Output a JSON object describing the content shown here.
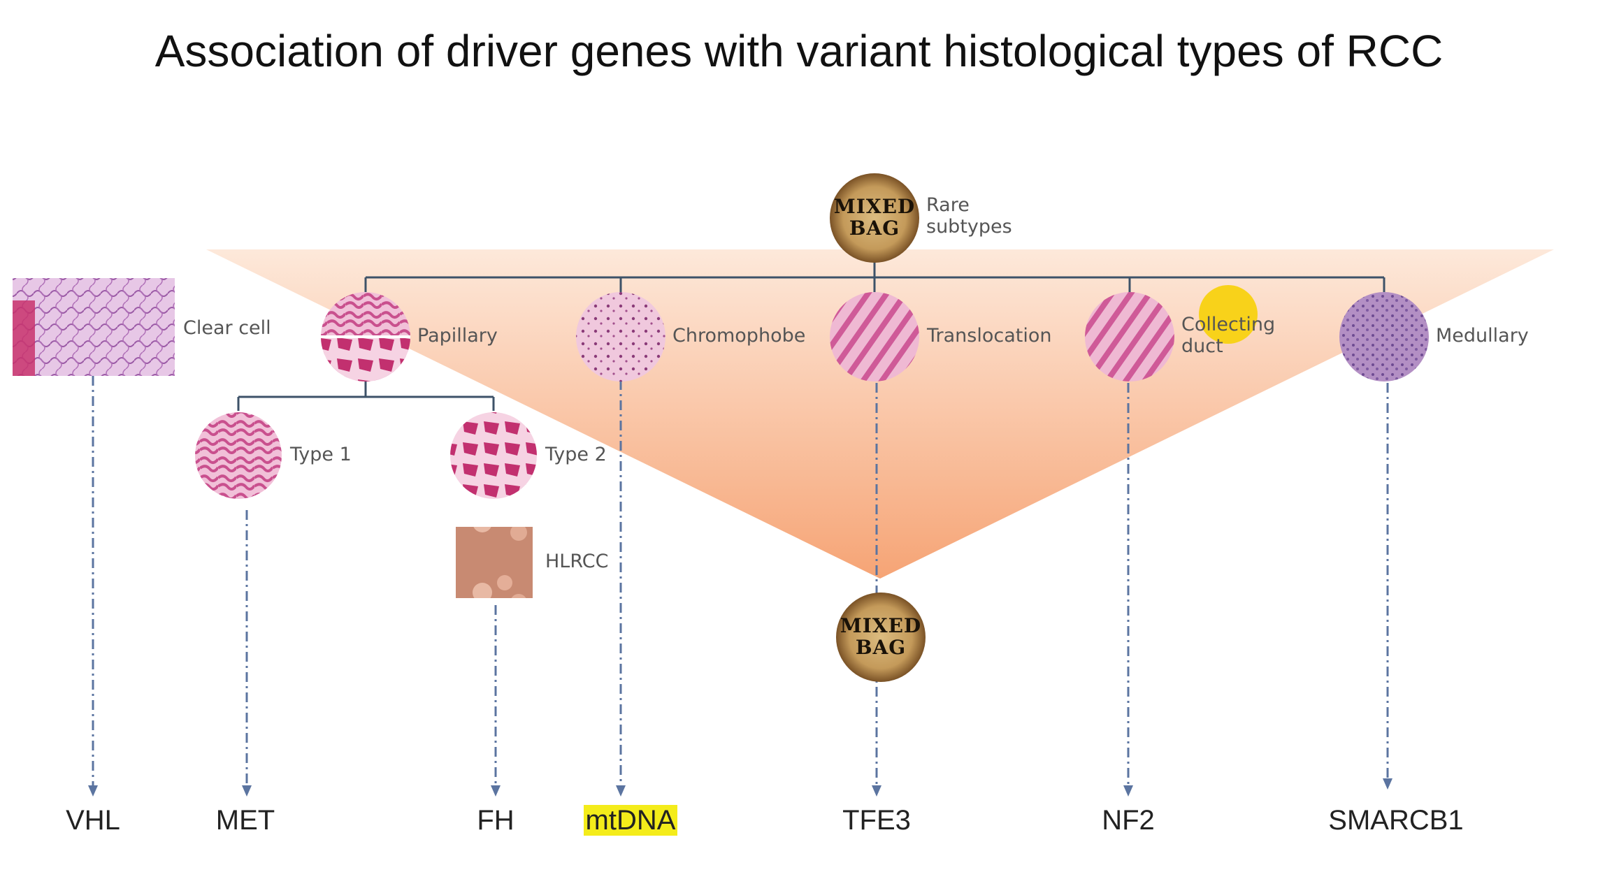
{
  "title": "Association of driver genes with variant histological types of RCC",
  "mixed_bag_top": {
    "badge_line1": "MIXED",
    "badge_line2": "BAG",
    "label_line1": "Rare",
    "label_line2": "subtypes"
  },
  "mixed_bag_bottom": {
    "badge_line1": "MIXED",
    "badge_line2": "BAG"
  },
  "subtypes": {
    "clear_cell": "Clear cell",
    "papillary": "Papillary",
    "chromophobe": "Chromophobe",
    "translocation": "Translocation",
    "collecting_duct_line1": "Collecting",
    "collecting_duct_line2": "duct",
    "medullary": "Medullary",
    "type1": "Type 1",
    "type2": "Type 2",
    "hlrcc": "HLRCC"
  },
  "genes": {
    "vhl": "VHL",
    "met": "MET",
    "fh": "FH",
    "mtdna": "mtDNA",
    "tfe3": "TFE3",
    "nf2": "NF2",
    "smarcb1": "SMARCB1"
  },
  "colors": {
    "triangle_top": "#fde3d2",
    "triangle_bottom": "#f59c6b",
    "tree_line": "#3d5268",
    "arrow_line": "#5b74a0",
    "gene_highlight": "#f4ec1a",
    "highlight_dot": "#f8d21a",
    "badge_outer": "#8a5e2a",
    "badge_inner": "#d9b77a"
  }
}
